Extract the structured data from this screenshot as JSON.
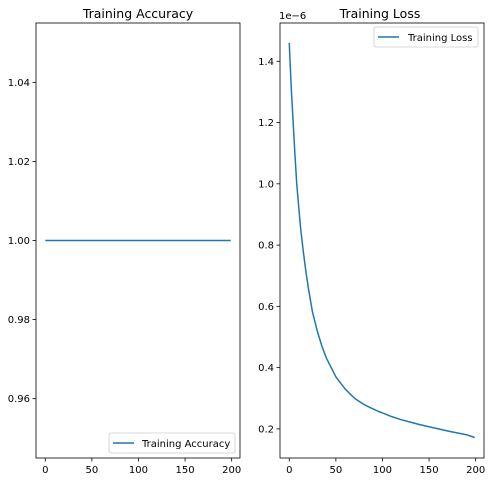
{
  "chart_data": [
    {
      "type": "line",
      "title": "Training Accuracy",
      "xlabel": "",
      "ylabel": "",
      "xlim": [
        -9.95,
        208.95
      ],
      "ylim": [
        0.945,
        1.055
      ],
      "xticks": [
        0,
        50,
        100,
        150,
        200
      ],
      "yticks": [
        0.96,
        0.98,
        1.0,
        1.02,
        1.04
      ],
      "ytick_labels": [
        "0.96",
        "0.98",
        "1.00",
        "1.02",
        "1.04"
      ],
      "grid": false,
      "legend_position": "lower-right",
      "series": [
        {
          "name": "Training Accuracy",
          "color": "#1f77b4",
          "x": [
            0,
            25,
            50,
            75,
            100,
            125,
            150,
            175,
            199
          ],
          "y": [
            1.0,
            1.0,
            1.0,
            1.0,
            1.0,
            1.0,
            1.0,
            1.0,
            1.0
          ]
        }
      ]
    },
    {
      "type": "line",
      "title": "Training Loss",
      "xlabel": "",
      "ylabel": "",
      "offset_text": "1e−6",
      "xlim": [
        -9.95,
        208.95
      ],
      "ylim": [
        0.105,
        1.525
      ],
      "xticks": [
        0,
        50,
        100,
        150,
        200
      ],
      "yticks": [
        0.2,
        0.4,
        0.6,
        0.8,
        1.0,
        1.2,
        1.4
      ],
      "ytick_labels": [
        "0.2",
        "0.4",
        "0.6",
        "0.8",
        "1.0",
        "1.2",
        "1.4"
      ],
      "grid": false,
      "legend_position": "upper-right",
      "series": [
        {
          "name": "Training Loss",
          "color": "#1f77b4",
          "x": [
            0,
            2,
            4,
            6,
            8,
            10,
            12,
            15,
            18,
            21,
            25,
            30,
            35,
            40,
            45,
            50,
            55,
            60,
            65,
            70,
            75,
            80,
            85,
            90,
            95,
            100,
            110,
            120,
            130,
            140,
            150,
            160,
            170,
            180,
            190,
            199
          ],
          "y": [
            1.46,
            1.32,
            1.21,
            1.1,
            1.0,
            0.93,
            0.86,
            0.78,
            0.71,
            0.65,
            0.58,
            0.52,
            0.47,
            0.43,
            0.4,
            0.37,
            0.35,
            0.33,
            0.315,
            0.3,
            0.29,
            0.28,
            0.272,
            0.265,
            0.258,
            0.252,
            0.24,
            0.23,
            0.222,
            0.214,
            0.207,
            0.2,
            0.193,
            0.187,
            0.181,
            0.172
          ]
        }
      ]
    }
  ]
}
